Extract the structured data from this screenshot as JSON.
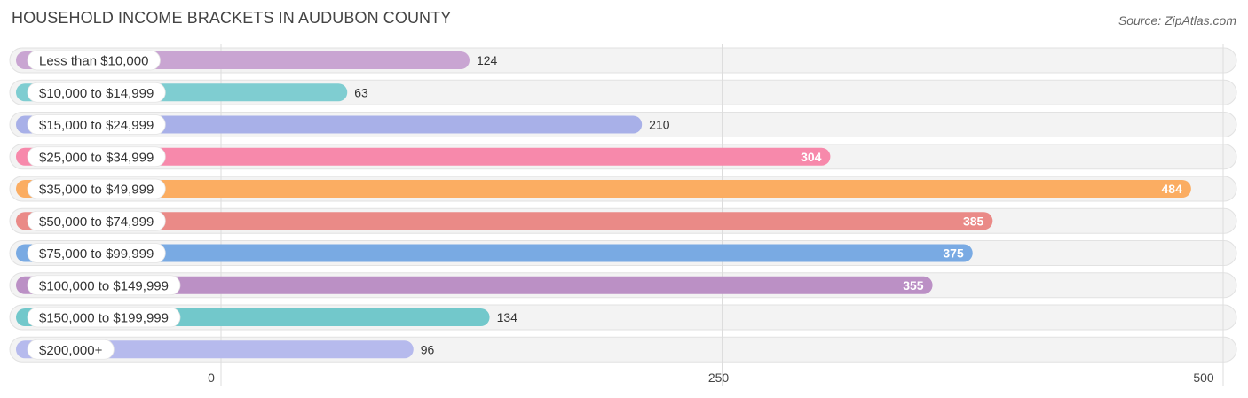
{
  "title": "HOUSEHOLD INCOME BRACKETS IN AUDUBON COUNTY",
  "source": "Source: ZipAtlas.com",
  "chart_data": {
    "type": "bar",
    "orientation": "horizontal",
    "title": "HOUSEHOLD INCOME BRACKETS IN AUDUBON COUNTY",
    "xlabel": "",
    "ylabel": "",
    "xlim": [
      0,
      500
    ],
    "x_ticks": [
      "0",
      "250",
      "500"
    ],
    "x_tick_values": [
      0,
      250,
      500
    ],
    "grid": true,
    "categories": [
      "Less than $10,000",
      "$10,000 to $14,999",
      "$15,000 to $24,999",
      "$25,000 to $34,999",
      "$35,000 to $49,999",
      "$50,000 to $74,999",
      "$75,000 to $99,999",
      "$100,000 to $149,999",
      "$150,000 to $199,999",
      "$200,000+"
    ],
    "values": [
      124,
      63,
      210,
      304,
      484,
      385,
      375,
      355,
      134,
      96
    ],
    "colors": [
      "#c9a5d2",
      "#7fcdd1",
      "#a8b0e8",
      "#f789ab",
      "#fbad62",
      "#ea8a87",
      "#79aae3",
      "#bb90c5",
      "#72c8cb",
      "#b6baed"
    ]
  }
}
